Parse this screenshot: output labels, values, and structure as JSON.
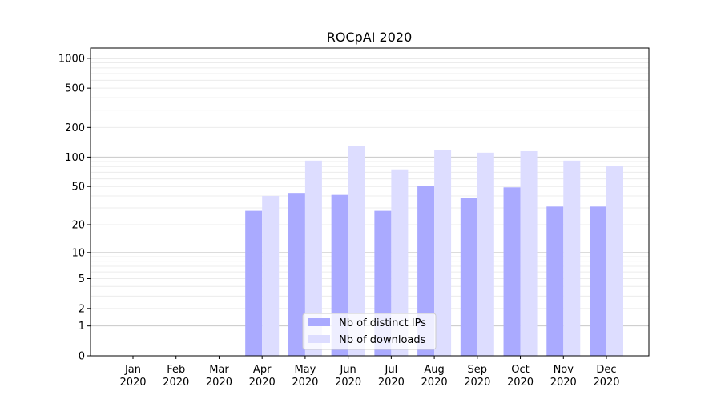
{
  "chart_data": {
    "type": "bar",
    "title": "ROCpAI 2020",
    "categories": [
      "Jan\n2020",
      "Feb\n2020",
      "Mar\n2020",
      "Apr\n2020",
      "May\n2020",
      "Jun\n2020",
      "Jul\n2020",
      "Aug\n2020",
      "Sep\n2020",
      "Oct\n2020",
      "Nov\n2020",
      "Dec\n2020"
    ],
    "series": [
      {
        "name": "Nb of distinct IPs",
        "color": "#aaaaff",
        "values": [
          0,
          0,
          0,
          28,
          43,
          41,
          28,
          51,
          38,
          49,
          31,
          31
        ]
      },
      {
        "name": "Nb of downloads",
        "color": "#ddddff",
        "values": [
          0,
          0,
          0,
          40,
          92,
          131,
          75,
          119,
          111,
          115,
          92,
          81
        ]
      }
    ],
    "yscale": "log(1+y)",
    "yticks": [
      0,
      1,
      2,
      5,
      10,
      20,
      50,
      100,
      200,
      500,
      1000
    ],
    "ylim": [
      0,
      1270
    ],
    "grid": true,
    "legend": "bottom-center"
  }
}
